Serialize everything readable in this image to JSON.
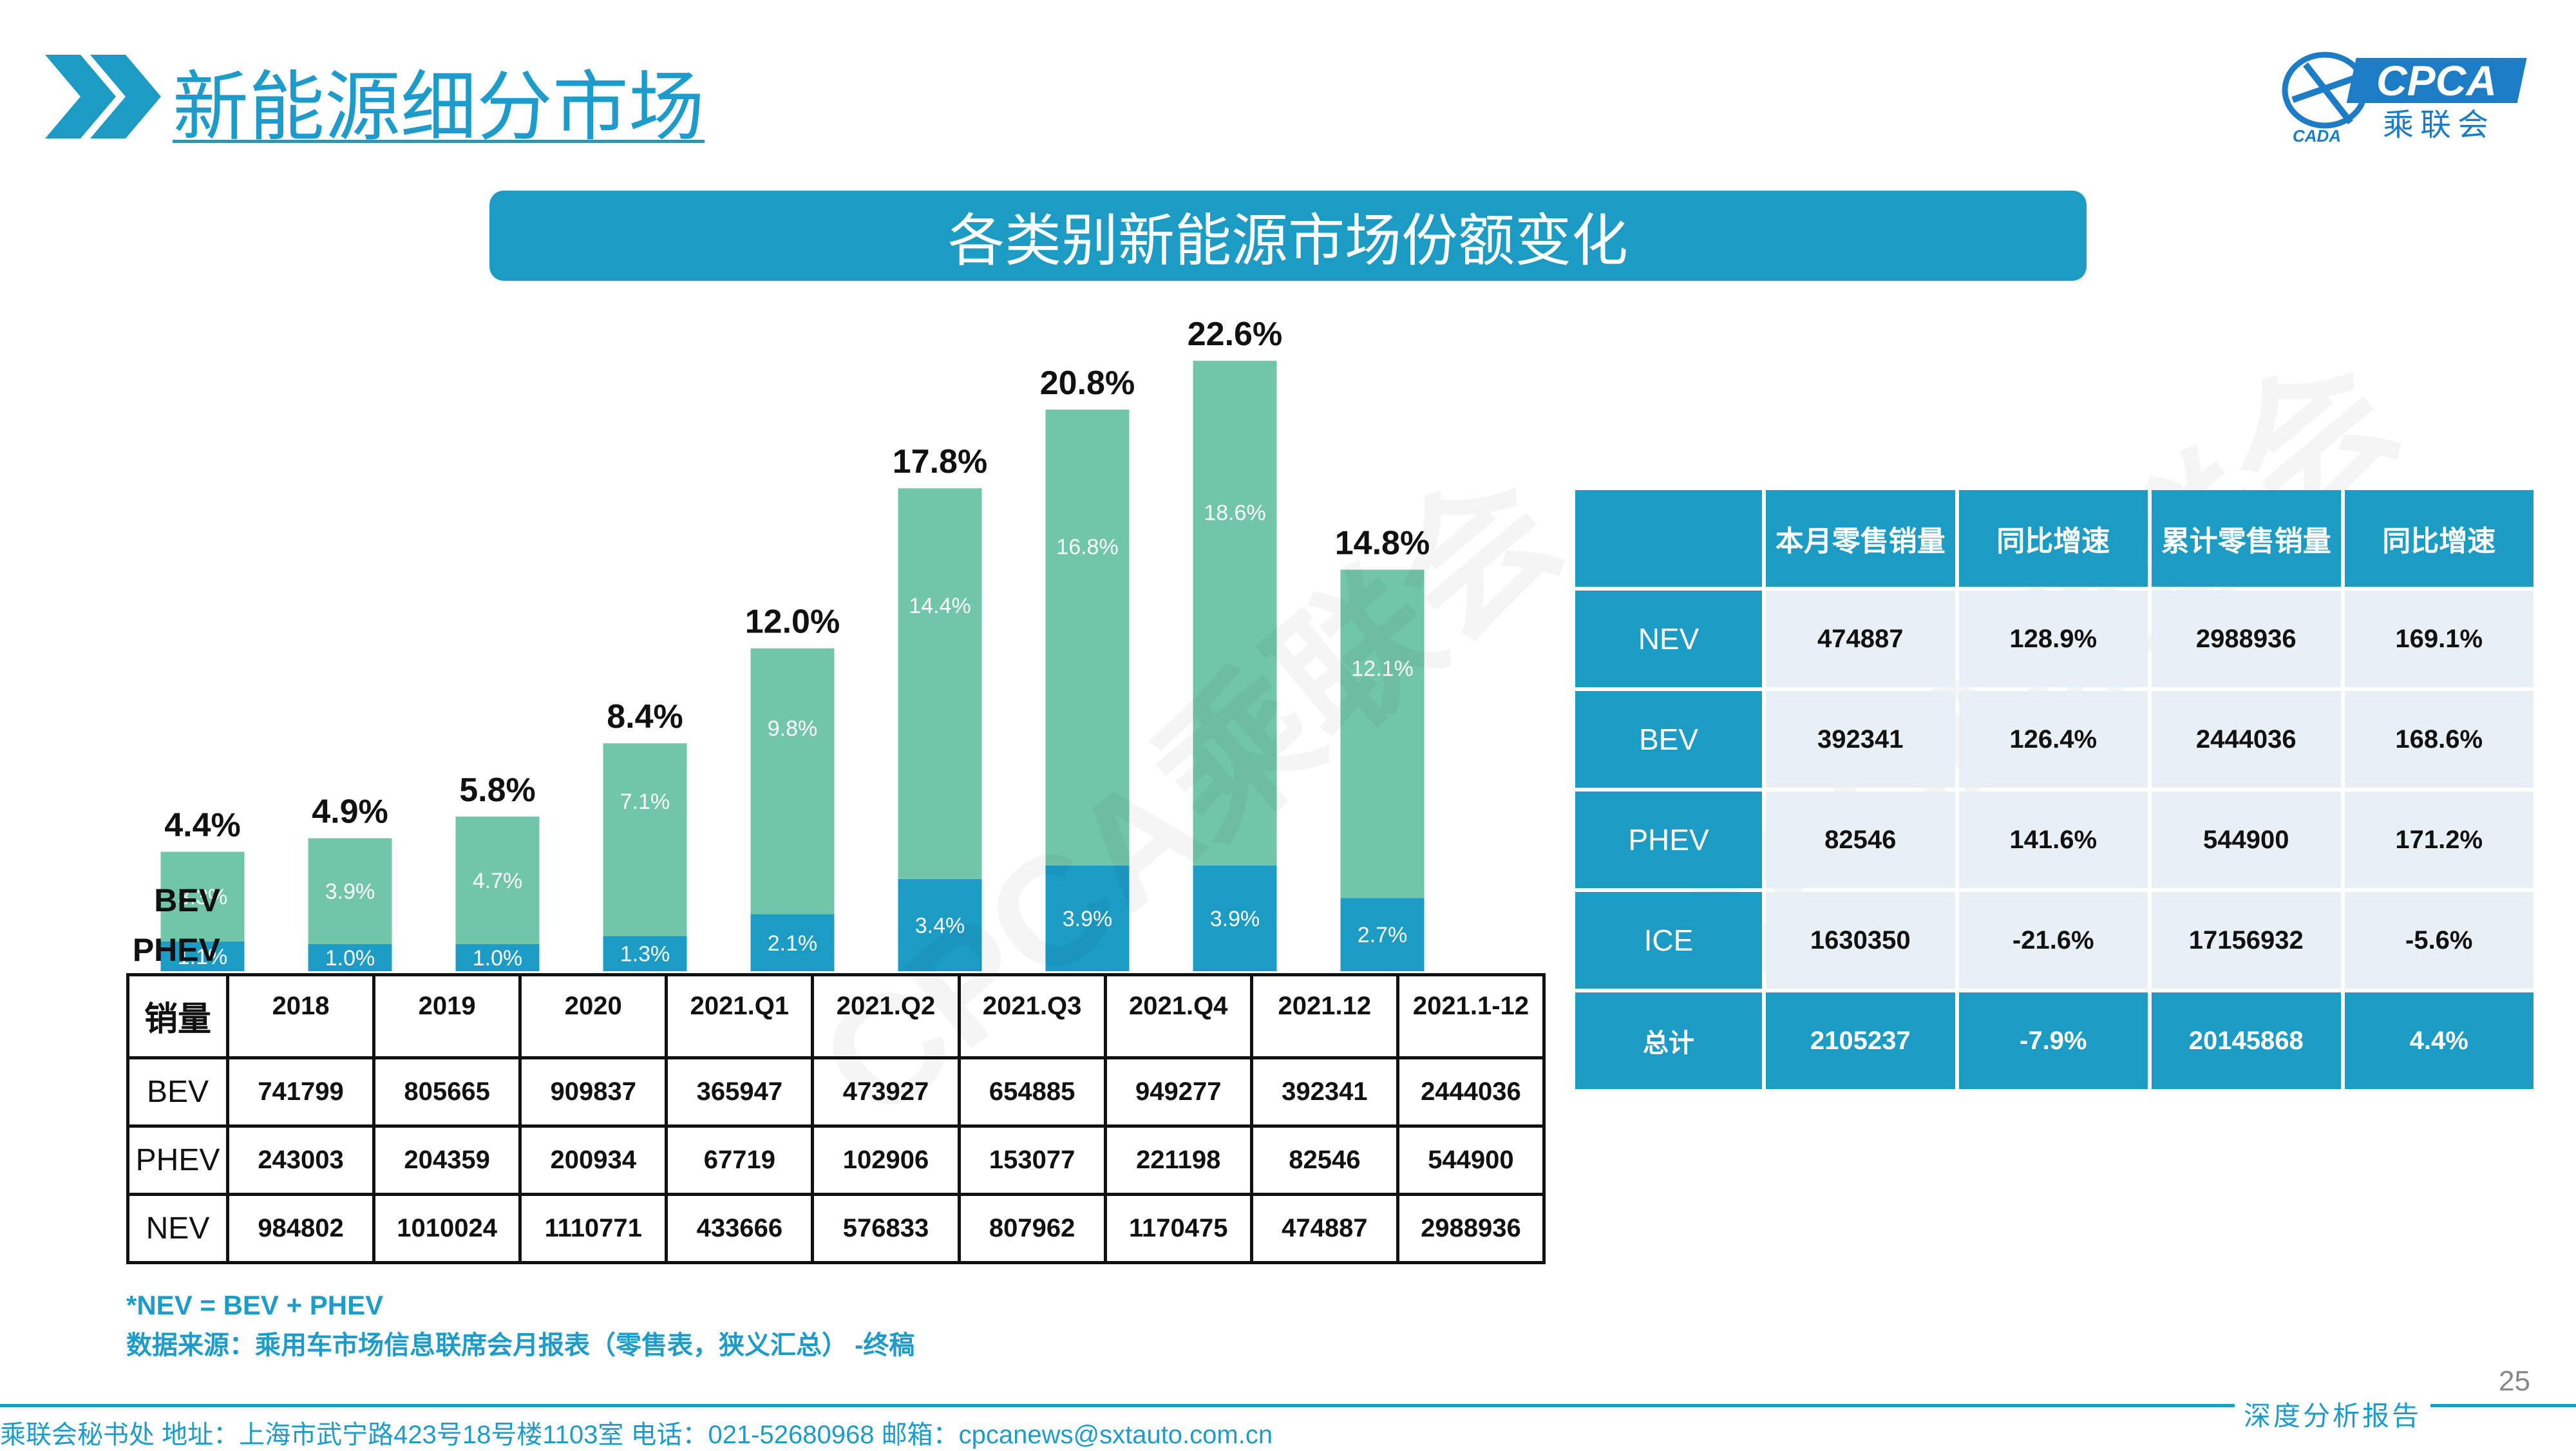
{
  "header": {
    "title": "新能源细分市场",
    "banner": "各类别新能源市场份额变化",
    "logo": {
      "text": "CPCA",
      "sub": "乘联会",
      "mark": "CADA"
    }
  },
  "colors": {
    "accent": "#1c9cc5",
    "bev_bar": "#71c5a8",
    "phev_bar": "#1c9cc5",
    "cell_bg": "#e9f0f5",
    "watermark": "CPCA乘联会"
  },
  "chart_data": {
    "type": "bar",
    "stacked": true,
    "categories": [
      "2018",
      "2019",
      "2020",
      "2021.Q1",
      "2021.Q2",
      "2021.Q3",
      "2021.Q4",
      "2021.12",
      "2021.1-12"
    ],
    "series": [
      {
        "name": "PHEV",
        "values": [
          1.1,
          1.0,
          1.0,
          1.3,
          2.1,
          3.4,
          3.9,
          3.9,
          2.7
        ],
        "labels": [
          "1.1%",
          "1.0%",
          "1.0%",
          "1.3%",
          "2.1%",
          "3.4%",
          "3.9%",
          "3.9%",
          "2.7%"
        ]
      },
      {
        "name": "BEV",
        "values": [
          3.3,
          3.9,
          4.7,
          7.1,
          9.8,
          14.4,
          16.8,
          18.6,
          12.1
        ],
        "labels": [
          "3.3%",
          "3.9%",
          "4.7%",
          "7.1%",
          "9.8%",
          "14.4%",
          "16.8%",
          "18.6%",
          "12.1%"
        ]
      }
    ],
    "totals": [
      4.4,
      4.9,
      5.8,
      8.4,
      12.0,
      17.8,
      20.8,
      22.6,
      14.8
    ],
    "total_labels": [
      "4.4%",
      "4.9%",
      "5.8%",
      "8.4%",
      "12.0%",
      "17.8%",
      "20.8%",
      "22.6%",
      "14.8%"
    ],
    "legend": [
      "BEV",
      "PHEV"
    ],
    "ylim": [
      0,
      22.6
    ],
    "grid": false
  },
  "left_table": {
    "corner": "销量",
    "columns": [
      "2018",
      "2019",
      "2020",
      "2021.Q1",
      "2021.Q2",
      "2021.Q3",
      "2021.Q4",
      "2021.12",
      "2021.1-12"
    ],
    "rows": [
      {
        "name": "BEV",
        "values": [
          "741799",
          "805665",
          "909837",
          "365947",
          "473927",
          "654885",
          "949277",
          "392341",
          "2444036"
        ]
      },
      {
        "name": "PHEV",
        "values": [
          "243003",
          "204359",
          "200934",
          "67719",
          "102906",
          "153077",
          "221198",
          "82546",
          "544900"
        ]
      },
      {
        "name": "NEV",
        "values": [
          "984802",
          "1010024",
          "1110771",
          "433666",
          "576833",
          "807962",
          "1170475",
          "474887",
          "2988936"
        ]
      }
    ]
  },
  "right_table": {
    "headers": [
      "",
      "本月零售销量",
      "同比增速",
      "累计零售销量",
      "同比增速"
    ],
    "rows": [
      {
        "name": "NEV",
        "values": [
          "474887",
          "128.9%",
          "2988936",
          "169.1%"
        ]
      },
      {
        "name": "BEV",
        "values": [
          "392341",
          "126.4%",
          "2444036",
          "168.6%"
        ]
      },
      {
        "name": "PHEV",
        "values": [
          "82546",
          "141.6%",
          "544900",
          "171.2%"
        ]
      },
      {
        "name": "ICE",
        "values": [
          "1630350",
          "-21.6%",
          "17156932",
          "-5.6%"
        ]
      }
    ],
    "total": {
      "name": "总计",
      "values": [
        "2105237",
        "-7.9%",
        "20145868",
        "4.4%"
      ]
    }
  },
  "notes": {
    "definition": "*NEV = BEV + PHEV",
    "source": "数据来源：乘用车市场信息联席会月报表（零售表，狭义汇总） -终稿"
  },
  "footer": {
    "page_number": "25",
    "contact": "乘联会秘书处   地址：上海市武宁路423号18号楼1103室  电话：021-52680968   邮箱：cpcanews@sxtauto.com.cn",
    "tag": "深度分析报告"
  }
}
